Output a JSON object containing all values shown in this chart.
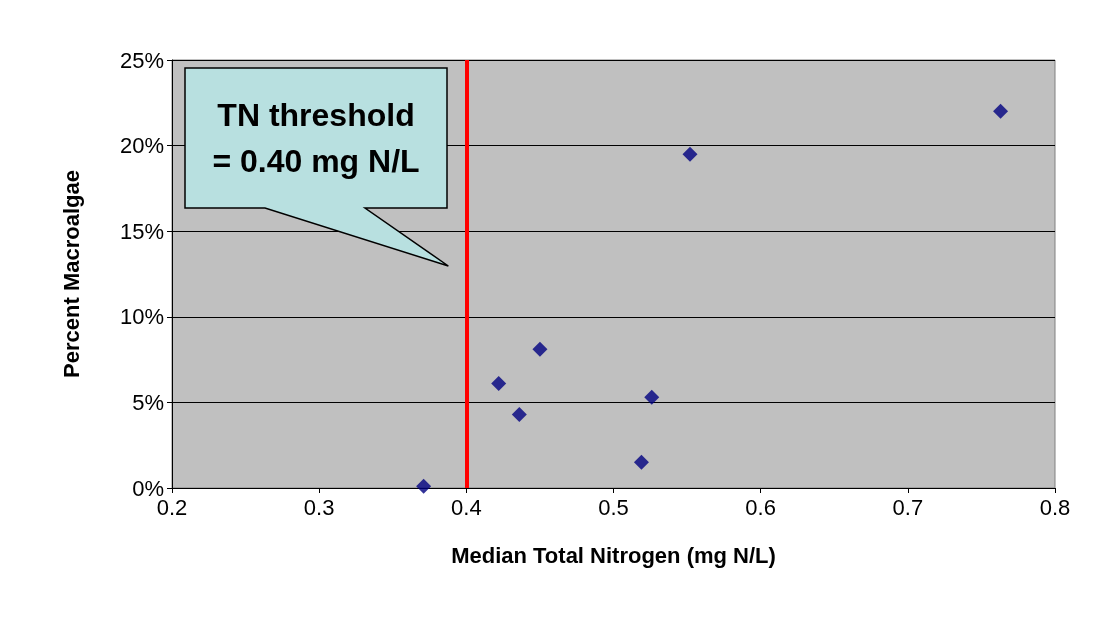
{
  "chart_data": {
    "type": "scatter",
    "xlabel": "Median Total Nitrogen (mg N/L)",
    "ylabel": "Percent Macroalgae",
    "x": [
      0.371,
      0.422,
      0.436,
      0.45,
      0.519,
      0.526,
      0.552,
      0.763
    ],
    "series": [
      {
        "color": "#000080",
        "values": [
          0.1,
          6.1,
          4.3,
          8.1,
          1.5,
          5.3,
          19.5,
          22.0
        ]
      }
    ],
    "marker": "diamond",
    "grid": "y",
    "xlim": [
      0.2,
      0.8
    ],
    "xticks": [
      0.2,
      0.3,
      0.4,
      0.5,
      0.6,
      0.7,
      0.8
    ],
    "ylim": [
      0,
      25
    ],
    "yticks": [
      {
        "value": 0,
        "label": "0%"
      },
      {
        "value": 5,
        "label": "5%"
      },
      {
        "value": 10,
        "label": "10%"
      },
      {
        "value": 15,
        "label": "15%"
      },
      {
        "value": 20,
        "label": "20%"
      },
      {
        "value": 25,
        "label": "25%"
      }
    ],
    "ref_lines": [
      {
        "axis": "x",
        "value": 0.4,
        "color": "#ff0000"
      }
    ],
    "annotations": [
      "TN threshold\n= 0.40 mg N/L"
    ]
  }
}
